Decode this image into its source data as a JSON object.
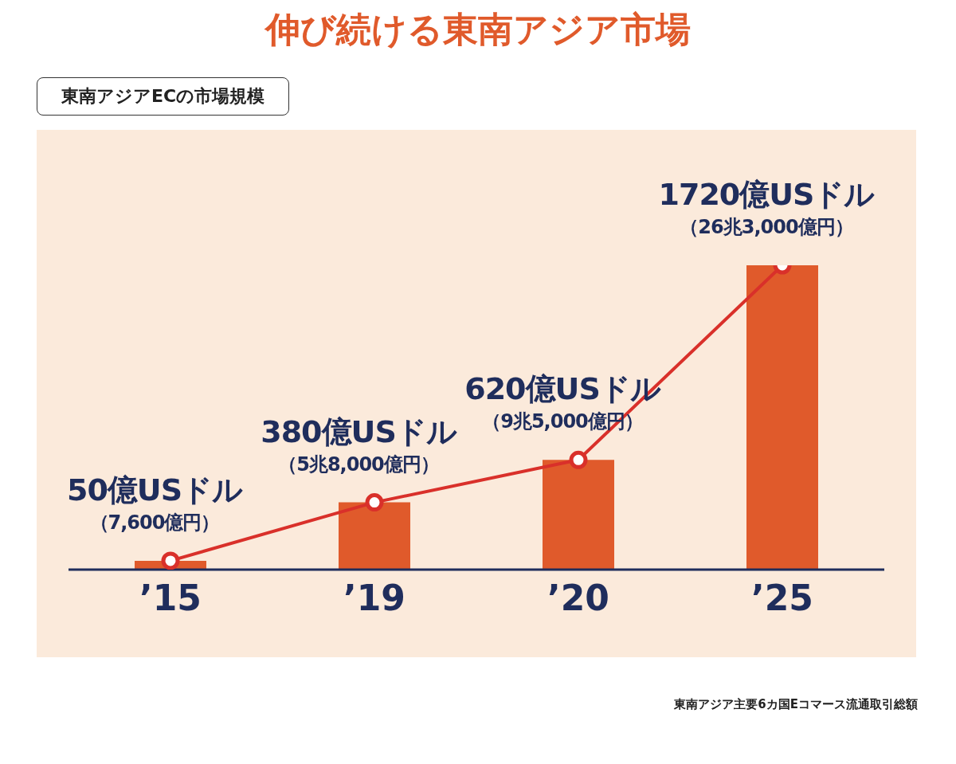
{
  "chart_data": {
    "type": "bar",
    "title": "伸び続ける東南アジア市場",
    "subtitle": "東南アジアECの市場規模",
    "categories": [
      "’15",
      "’19",
      "’20",
      "’25"
    ],
    "series": [
      {
        "color": "#e05a2b",
        "values": [
          50,
          380,
          620,
          1720
        ],
        "value_labels": [
          "50億USドル（7,600億円）",
          "380億USドル（5兆8,000億円）",
          "620億USドル（9兆5,000億円）",
          "1720億USドル（26兆3,000億円）"
        ]
      },
      {
        "type": "line",
        "color": "#d9302a",
        "values": [
          50,
          380,
          620,
          1720
        ]
      }
    ],
    "marker": "circle",
    "legend": false,
    "annotations": [
      "東南アジア主要6カ国Eコマース流通取引総額"
    ]
  }
}
